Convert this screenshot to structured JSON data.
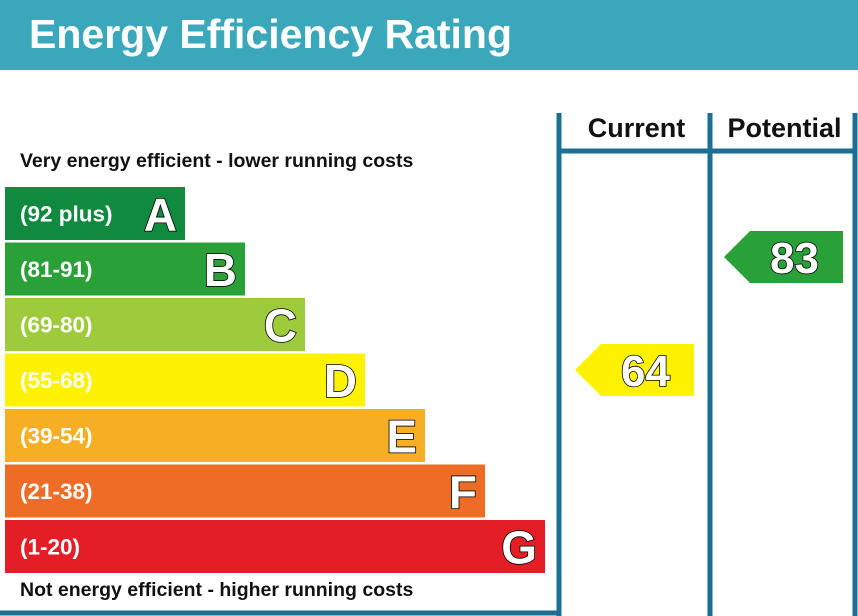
{
  "header": {
    "title": "Energy Efficiency Rating"
  },
  "notes": {
    "top": "Very energy efficient - lower running costs",
    "bottom": "Not energy efficient - higher running costs"
  },
  "colors": {
    "header_bg": "#3aa7ba",
    "frame": "#1a6f92"
  },
  "chart_data": {
    "type": "bar",
    "title": "Energy Efficiency Rating",
    "categories": [
      "A",
      "B",
      "C",
      "D",
      "E",
      "F",
      "G"
    ],
    "ranges": [
      "(92 plus)",
      "(81-91)",
      "(69-80)",
      "(55-68)",
      "(39-54)",
      "(21-38)",
      "(1-20)"
    ],
    "colors": [
      "#108a3e",
      "#2aa038",
      "#9dcb3c",
      "#fff200",
      "#f6ae24",
      "#ee6c25",
      "#e41e26"
    ],
    "columns": [
      "Current",
      "Potential"
    ],
    "ratings": [
      {
        "column": "Current",
        "value": 64,
        "band": "D",
        "color": "#fff200"
      },
      {
        "column": "Potential",
        "value": 83,
        "band": "B",
        "color": "#2aa038"
      }
    ]
  }
}
